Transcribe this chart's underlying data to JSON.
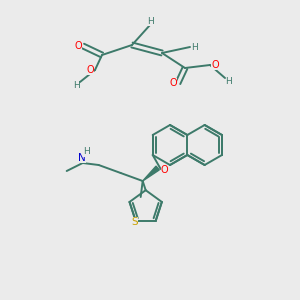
{
  "background_color": "#ebebeb",
  "bond_color": "#3d7a6a",
  "atom_colors": {
    "O": "#ff0000",
    "N": "#0000cd",
    "S": "#c8a000",
    "H": "#3d7a6a",
    "C": "#3d7a6a"
  },
  "figsize": [
    3.0,
    3.0
  ],
  "dpi": 100,
  "lw": 1.4
}
